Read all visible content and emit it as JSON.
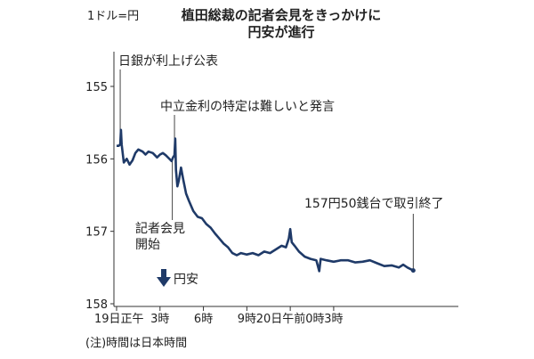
{
  "chart_data": {
    "type": "line",
    "title_lines": [
      "植田総裁の記者会見をきっかけに",
      "円安が進行"
    ],
    "unit_label": "1ドル=円",
    "y_inverted": true,
    "ylim": [
      155,
      158
    ],
    "y_ticks": [
      "155",
      "156",
      "157",
      "158"
    ],
    "x_range_hours": [
      0,
      23
    ],
    "x_ticks": [
      {
        "label": "19日正午",
        "hour": 0
      },
      {
        "label": "3時",
        "hour": 3
      },
      {
        "label": "6時",
        "hour": 6
      },
      {
        "label": "9時",
        "hour": 9
      },
      {
        "label": "20日午前0時",
        "hour": 12
      },
      {
        "label": "3時",
        "hour": 15
      }
    ],
    "series": [
      {
        "color": "#1f3a68",
        "points": [
          [
            0.0,
            155.82
          ],
          [
            0.15,
            155.82
          ],
          [
            0.25,
            155.8
          ],
          [
            0.3,
            155.6
          ],
          [
            0.35,
            155.8
          ],
          [
            0.5,
            156.05
          ],
          [
            0.7,
            156.0
          ],
          [
            0.9,
            156.08
          ],
          [
            1.1,
            156.02
          ],
          [
            1.3,
            155.92
          ],
          [
            1.5,
            155.87
          ],
          [
            1.8,
            155.9
          ],
          [
            2.0,
            155.94
          ],
          [
            2.2,
            155.9
          ],
          [
            2.5,
            155.92
          ],
          [
            2.8,
            155.98
          ],
          [
            3.0,
            155.94
          ],
          [
            3.2,
            155.92
          ],
          [
            3.4,
            155.95
          ],
          [
            3.6,
            155.99
          ],
          [
            3.8,
            156.03
          ],
          [
            3.9,
            155.98
          ],
          [
            4.0,
            155.95
          ],
          [
            4.05,
            155.72
          ],
          [
            4.1,
            156.15
          ],
          [
            4.2,
            156.38
          ],
          [
            4.3,
            156.3
          ],
          [
            4.45,
            156.12
          ],
          [
            4.6,
            156.28
          ],
          [
            4.8,
            156.48
          ],
          [
            5.0,
            156.58
          ],
          [
            5.3,
            156.72
          ],
          [
            5.6,
            156.8
          ],
          [
            5.9,
            156.82
          ],
          [
            6.2,
            156.9
          ],
          [
            6.5,
            156.95
          ],
          [
            6.8,
            157.03
          ],
          [
            7.1,
            157.1
          ],
          [
            7.4,
            157.17
          ],
          [
            7.7,
            157.22
          ],
          [
            8.0,
            157.3
          ],
          [
            8.3,
            157.33
          ],
          [
            8.6,
            157.3
          ],
          [
            9.0,
            157.32
          ],
          [
            9.4,
            157.3
          ],
          [
            9.8,
            157.33
          ],
          [
            10.2,
            157.28
          ],
          [
            10.6,
            157.3
          ],
          [
            11.0,
            157.25
          ],
          [
            11.4,
            157.2
          ],
          [
            11.7,
            157.22
          ],
          [
            11.9,
            157.1
          ],
          [
            12.0,
            156.97
          ],
          [
            12.1,
            157.15
          ],
          [
            12.3,
            157.2
          ],
          [
            12.6,
            157.28
          ],
          [
            13.0,
            157.35
          ],
          [
            13.4,
            157.38
          ],
          [
            13.8,
            157.4
          ],
          [
            14.0,
            157.55
          ],
          [
            14.1,
            157.38
          ],
          [
            14.5,
            157.4
          ],
          [
            15.0,
            157.42
          ],
          [
            15.5,
            157.4
          ],
          [
            16.0,
            157.4
          ],
          [
            16.5,
            157.43
          ],
          [
            17.0,
            157.42
          ],
          [
            17.5,
            157.4
          ],
          [
            18.0,
            157.44
          ],
          [
            18.5,
            157.48
          ],
          [
            19.0,
            157.47
          ],
          [
            19.5,
            157.5
          ],
          [
            19.8,
            157.46
          ],
          [
            20.1,
            157.5
          ],
          [
            20.5,
            157.54
          ]
        ]
      }
    ],
    "annotations": [
      {
        "lines": [
          "日銀が利上げ公表"
        ],
        "hour": 0.25,
        "value": 155.82
      },
      {
        "lines": [
          "中立金利の特定は難しいと発言"
        ],
        "hour": 4.0,
        "value": 155.92
      },
      {
        "lines": [
          "記者会見",
          "開始"
        ],
        "hour": 3.85,
        "value": 156.0
      },
      {
        "lines": [
          "157円50銭台で取引終了"
        ],
        "hour": 20.5,
        "value": 157.54
      }
    ],
    "arrow_label": "円安",
    "note": "(注)時間は日本時間"
  }
}
